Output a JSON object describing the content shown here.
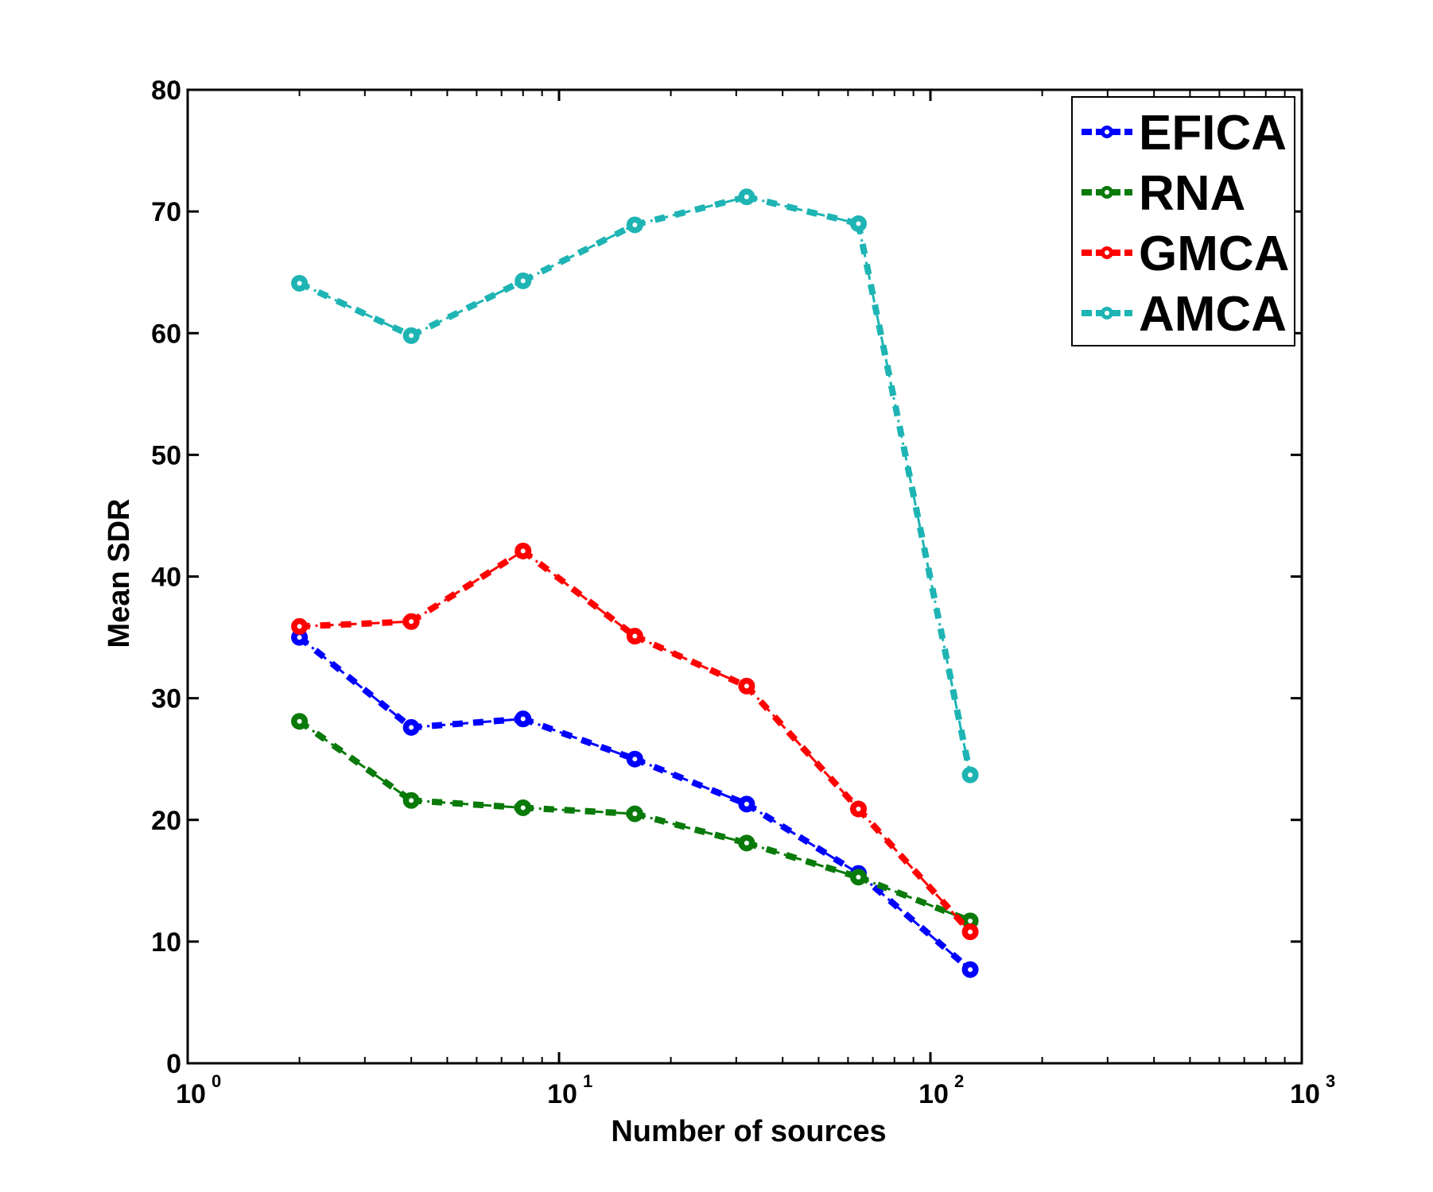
{
  "chart_data": {
    "type": "line",
    "title": "",
    "xlabel": "Number of sources",
    "ylabel": "Mean SDR",
    "xscale": "log",
    "xlim": [
      1,
      1000
    ],
    "ylim": [
      0,
      80
    ],
    "x_ticks": [
      {
        "base": "10",
        "exp": "0",
        "value": 1
      },
      {
        "base": "10",
        "exp": "1",
        "value": 10
      },
      {
        "base": "10",
        "exp": "2",
        "value": 100
      },
      {
        "base": "10",
        "exp": "3",
        "value": 1000
      }
    ],
    "y_ticks": [
      "0",
      "10",
      "20",
      "30",
      "40",
      "50",
      "60",
      "70",
      "80"
    ],
    "grid": false,
    "legend_position": "top-right",
    "x": [
      2,
      4,
      8,
      16,
      32,
      64,
      128
    ],
    "series": [
      {
        "name": "EFICA",
        "color": "#0000ff",
        "values": [
          35.0,
          27.6,
          28.3,
          25.0,
          21.3,
          15.6,
          7.7
        ]
      },
      {
        "name": "RNA",
        "color": "#0a7a0a",
        "values": [
          28.1,
          21.6,
          21.0,
          20.5,
          18.1,
          15.3,
          11.7
        ]
      },
      {
        "name": "GMCA",
        "color": "#ff0000",
        "values": [
          35.9,
          36.3,
          42.1,
          35.1,
          31.0,
          20.9,
          10.8
        ]
      },
      {
        "name": "AMCA",
        "color": "#1eb4b4",
        "values": [
          64.1,
          59.8,
          64.3,
          68.9,
          71.2,
          69.0,
          23.7
        ]
      }
    ]
  }
}
